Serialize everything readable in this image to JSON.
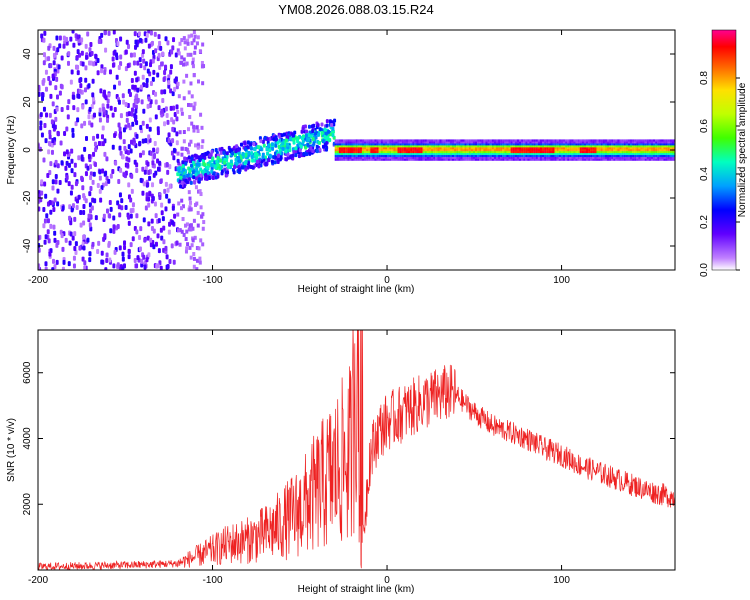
{
  "title": "YM08.2026.088.03.15.R24",
  "chart_data": [
    {
      "type": "heatmap",
      "xlabel": "Height of straight line (km)",
      "ylabel": "Frequency (Hz)",
      "xlim": [
        -200,
        165
      ],
      "ylim": [
        -50,
        50
      ],
      "xticks": [
        -200,
        -100,
        0,
        100
      ],
      "yticks": [
        -40,
        -20,
        0,
        20,
        40
      ],
      "colorbar": {
        "label": "Normalized spectral amplitude",
        "range": [
          0,
          1
        ],
        "ticks": [
          0.0,
          0.2,
          0.4,
          0.6,
          0.8
        ],
        "colors": [
          "#ffffff",
          "#a000ff",
          "#2000ff",
          "#00c0ff",
          "#00ff80",
          "#a0ff00",
          "#ffff00",
          "#ff8000",
          "#ff0000",
          "#ff0080"
        ]
      },
      "regions": [
        {
          "name": "noise",
          "x": [
            -200,
            -120
          ],
          "freq": [
            -50,
            50
          ],
          "level": 0.15
        },
        {
          "name": "rising trace",
          "x": [
            -120,
            -30
          ],
          "freq_center": [
            -10,
            7
          ],
          "level": 0.4
        },
        {
          "name": "steady trace",
          "x": [
            -30,
            165
          ],
          "freq_center": [
            0,
            0
          ],
          "level": 0.9
        }
      ]
    },
    {
      "type": "line",
      "xlabel": "Height of straight line (km)",
      "ylabel": "SNR (10 * v/v)",
      "xlim": [
        -200,
        165
      ],
      "ylim": [
        0,
        7300
      ],
      "xticks": [
        -200,
        -100,
        0,
        100
      ],
      "yticks": [
        2000,
        4000,
        6000
      ],
      "series": [
        {
          "name": "SNR",
          "color": "#ee2222",
          "x": [
            -200,
            -180,
            -160,
            -140,
            -120,
            -110,
            -100,
            -90,
            -80,
            -70,
            -60,
            -50,
            -40,
            -30,
            -20,
            -18,
            -15,
            -10,
            -5,
            0,
            10,
            20,
            30,
            35,
            40,
            50,
            60,
            70,
            80,
            90,
            100,
            110,
            120,
            130,
            140,
            150,
            165
          ],
          "y": [
            100,
            120,
            140,
            160,
            200,
            400,
            600,
            800,
            900,
            1100,
            1400,
            1800,
            2400,
            3000,
            3600,
            7300,
            200,
            3400,
            4200,
            4500,
            4800,
            5100,
            5300,
            5400,
            5300,
            4800,
            4400,
            4200,
            4000,
            3700,
            3500,
            3200,
            3000,
            2800,
            2600,
            2400,
            2200
          ]
        }
      ]
    }
  ]
}
